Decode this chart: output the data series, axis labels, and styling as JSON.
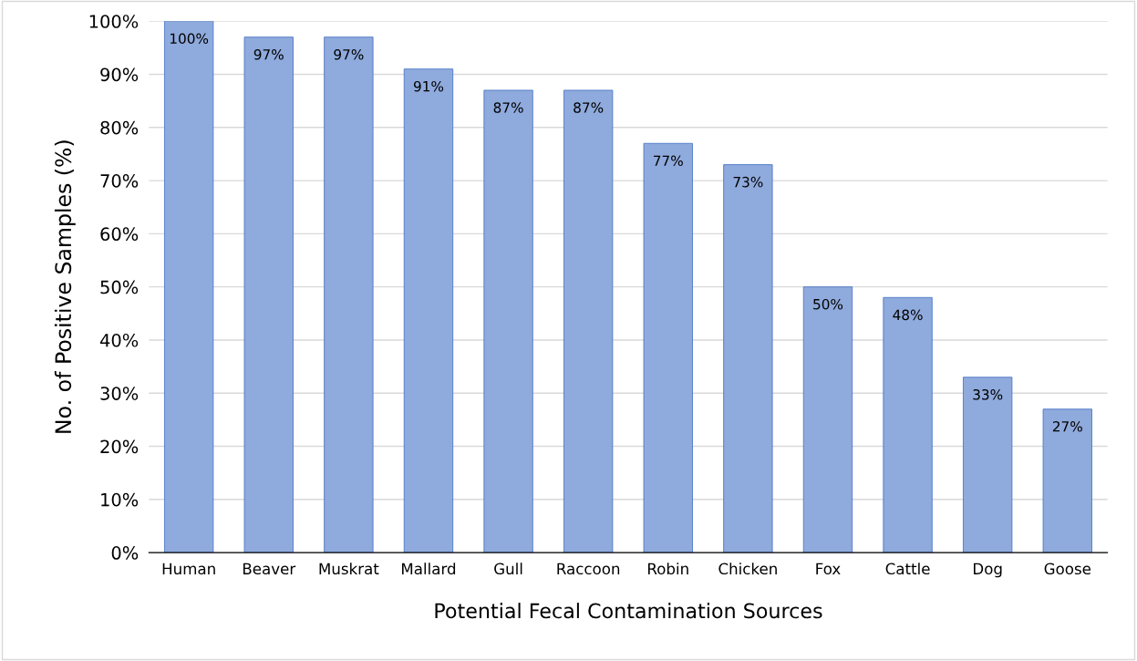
{
  "chart_data": {
    "type": "bar",
    "xlabel": "Potential Fecal Contamination Sources",
    "ylabel": "No. of Positive Samples (%)",
    "categories": [
      "Human",
      "Beaver",
      "Muskrat",
      "Mallard",
      "Gull",
      "Raccoon",
      "Robin",
      "Chicken",
      "Fox",
      "Cattle",
      "Dog",
      "Goose"
    ],
    "values": [
      100,
      97,
      97,
      91,
      87,
      87,
      77,
      73,
      50,
      48,
      33,
      27
    ],
    "value_labels": [
      "100%",
      "97%",
      "97%",
      "91%",
      "87%",
      "87%",
      "77%",
      "73%",
      "50%",
      "48%",
      "33%",
      "27%"
    ],
    "color": "#8faadc",
    "ylim": [
      0,
      100
    ],
    "yticks": [
      {
        "value": 0,
        "label": "0%"
      },
      {
        "value": 10,
        "label": "10%"
      },
      {
        "value": 20,
        "label": "20%"
      },
      {
        "value": 30,
        "label": "30%"
      },
      {
        "value": 40,
        "label": "40%"
      },
      {
        "value": 50,
        "label": "50%"
      },
      {
        "value": 60,
        "label": "60%"
      },
      {
        "value": 70,
        "label": "70%"
      },
      {
        "value": 80,
        "label": "80%"
      },
      {
        "value": 90,
        "label": "90%"
      },
      {
        "value": 100,
        "label": "100%"
      }
    ],
    "grid": "y",
    "legend": false
  }
}
